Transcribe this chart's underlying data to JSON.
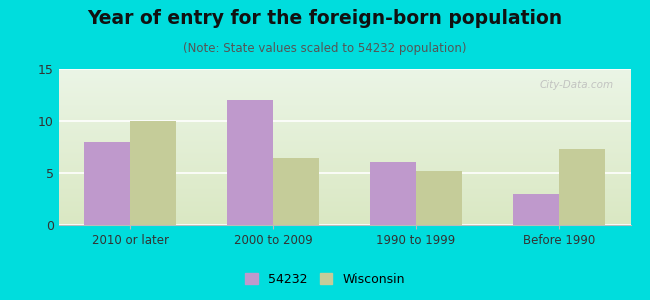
{
  "title": "Year of entry for the foreign-born population",
  "subtitle": "(Note: State values scaled to 54232 population)",
  "categories": [
    "2010 or later",
    "2000 to 2009",
    "1990 to 1999",
    "Before 1990"
  ],
  "series_54232": [
    8.0,
    12.0,
    6.1,
    3.0
  ],
  "series_wisconsin": [
    10.0,
    6.4,
    5.2,
    7.3
  ],
  "bar_color_54232": "#bf99cc",
  "bar_color_wisconsin": "#c5cc99",
  "background_outer": "#00dddd",
  "ylim": [
    0,
    15
  ],
  "yticks": [
    0,
    5,
    10,
    15
  ],
  "title_fontsize": 13.5,
  "subtitle_fontsize": 8.5,
  "legend_label_54232": "54232",
  "legend_label_wisconsin": "Wisconsin",
  "bar_width": 0.32,
  "watermark": "City-Data.com",
  "grid_color": "#ffffff",
  "spine_color": "#bbbbbb"
}
